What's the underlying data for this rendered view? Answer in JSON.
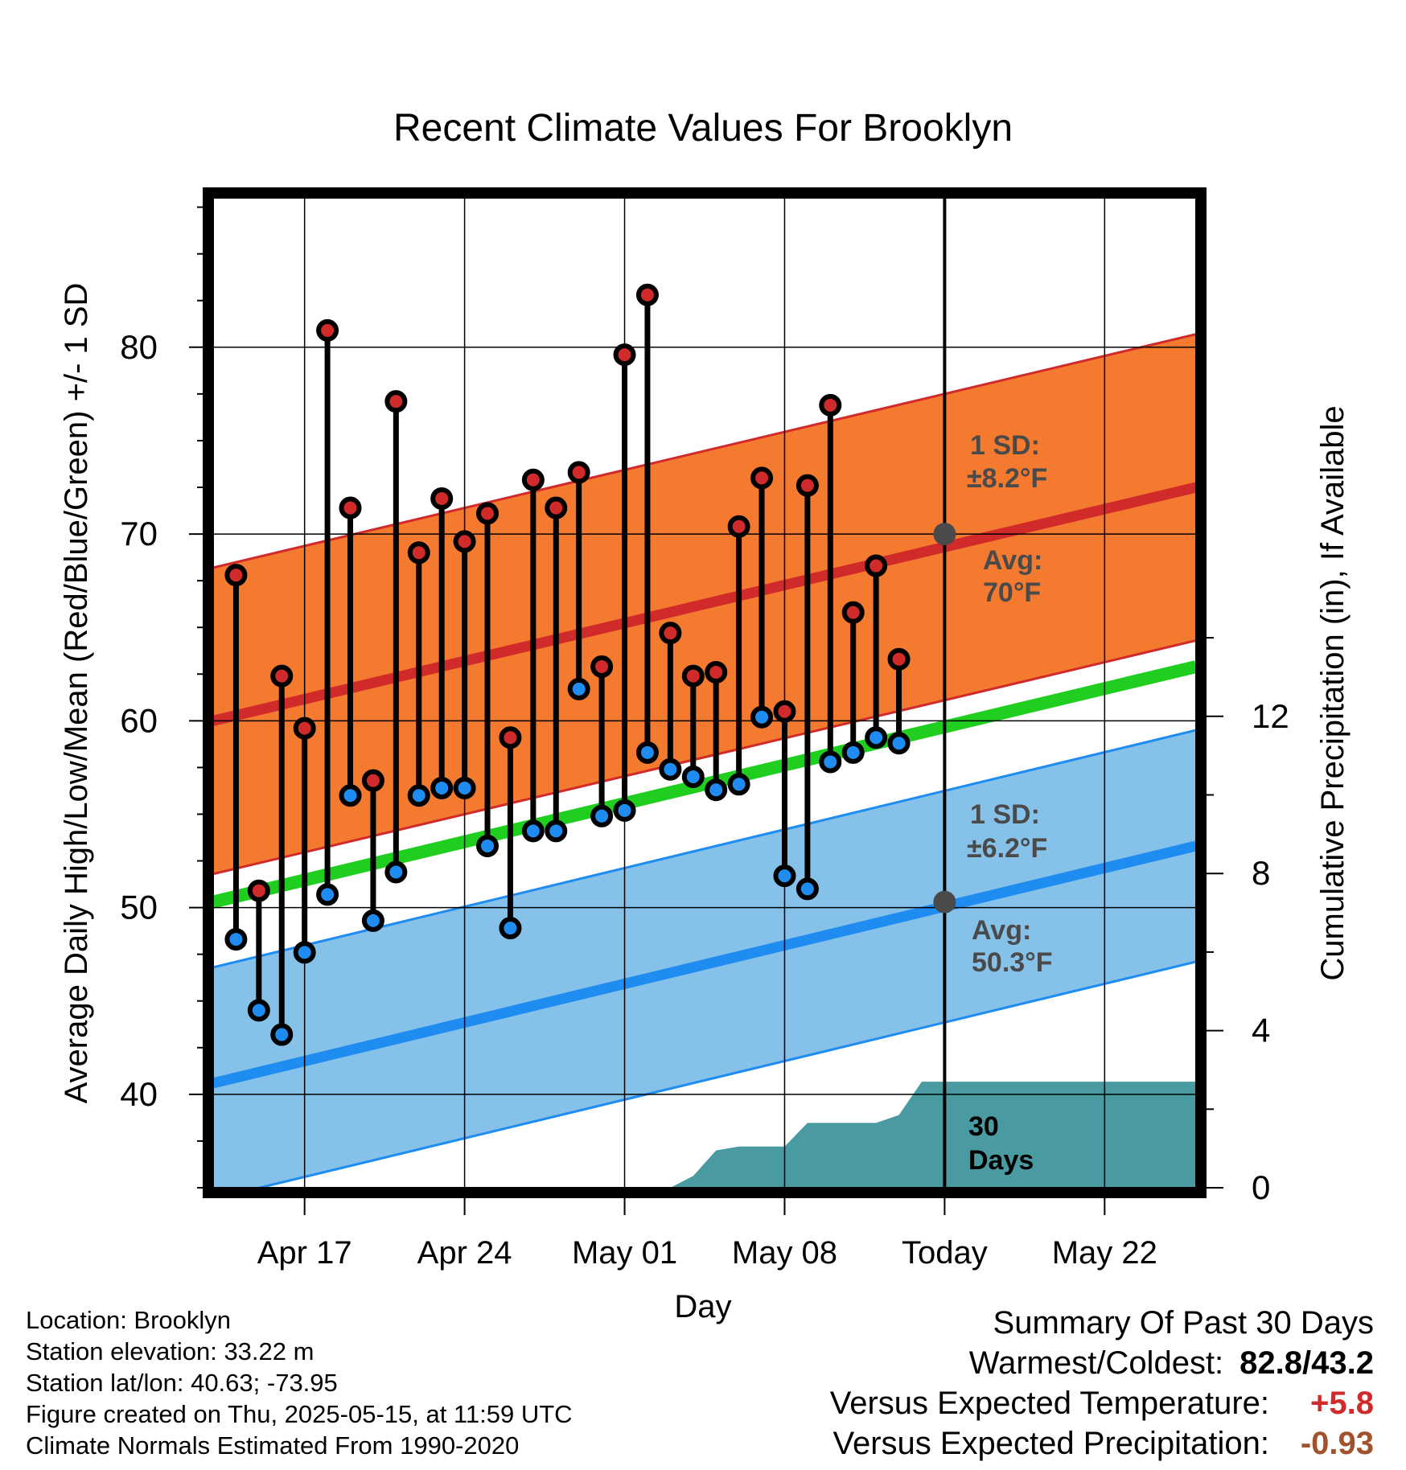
{
  "chart_data": {
    "type": "line",
    "title": "Recent Climate Values For Brooklyn",
    "xlabel": "Day",
    "ylabel_left": "Average Daily High/Low/Mean (Red/Blue/Green) +/- 1 SD",
    "ylabel_right": "Cumulative Precipitation (in), If Available",
    "x_range": [
      "2025-04-13",
      "2025-05-26"
    ],
    "ylim_left": [
      35,
      88
    ],
    "ylim_right": [
      0,
      25.2
    ],
    "yticks_left": [
      40,
      50,
      60,
      70,
      80
    ],
    "yticks_right": [
      0,
      4,
      8,
      12
    ],
    "x_ticks": [
      {
        "date": "2025-04-17",
        "label": "Apr 17"
      },
      {
        "date": "2025-04-24",
        "label": "Apr 24"
      },
      {
        "date": "2025-05-01",
        "label": "May 01"
      },
      {
        "date": "2025-05-08",
        "label": "May 08"
      },
      {
        "date": "2025-05-15",
        "label": "Today"
      },
      {
        "date": "2025-05-22",
        "label": "May 22"
      }
    ],
    "grid": true,
    "daily": {
      "dates": [
        "2025-04-14",
        "2025-04-15",
        "2025-04-16",
        "2025-04-17",
        "2025-04-18",
        "2025-04-19",
        "2025-04-20",
        "2025-04-21",
        "2025-04-22",
        "2025-04-23",
        "2025-04-24",
        "2025-04-25",
        "2025-04-26",
        "2025-04-27",
        "2025-04-28",
        "2025-04-29",
        "2025-04-30",
        "2025-05-01",
        "2025-05-02",
        "2025-05-03",
        "2025-05-04",
        "2025-05-05",
        "2025-05-06",
        "2025-05-07",
        "2025-05-08",
        "2025-05-09",
        "2025-05-10",
        "2025-05-11",
        "2025-05-12",
        "2025-05-13",
        "2025-05-14"
      ],
      "high": [
        67.8,
        50.9,
        62.4,
        59.6,
        80.9,
        71.4,
        56.8,
        77.1,
        69.0,
        71.9,
        69.6,
        71.1,
        59.1,
        72.9,
        71.4,
        73.3,
        62.9,
        79.6,
        82.8,
        64.7,
        62.4,
        62.6,
        70.4,
        73.0,
        60.5,
        72.6,
        76.9,
        65.8,
        68.3,
        63.3,
        null
      ],
      "low": [
        48.3,
        44.5,
        43.2,
        47.6,
        50.7,
        56.0,
        49.3,
        51.9,
        56.0,
        56.4,
        56.4,
        53.3,
        48.9,
        54.1,
        54.1,
        61.7,
        54.9,
        55.2,
        58.3,
        57.4,
        57.0,
        56.3,
        56.6,
        60.2,
        51.7,
        51.0,
        57.8,
        58.3,
        59.1,
        58.8,
        null
      ]
    },
    "normals": {
      "dates": [
        "2025-04-13",
        "2025-05-26"
      ],
      "avg_high": [
        60.0,
        72.5
      ],
      "high_sd": 8.2,
      "avg_low": [
        40.6,
        53.3
      ],
      "low_sd": 6.2,
      "avg_mean": [
        50.3,
        62.9
      ]
    },
    "precip": {
      "dates": [
        "2025-04-13",
        "2025-04-24",
        "2025-05-03",
        "2025-05-04",
        "2025-05-05",
        "2025-05-06",
        "2025-05-07",
        "2025-05-08",
        "2025-05-09",
        "2025-05-10",
        "2025-05-11",
        "2025-05-12",
        "2025-05-13",
        "2025-05-14",
        "2025-05-15",
        "2025-05-26"
      ],
      "values": [
        0,
        0,
        0,
        0.3,
        0.95,
        1.05,
        1.05,
        1.05,
        1.65,
        1.65,
        1.65,
        1.65,
        1.85,
        2.7,
        2.7,
        2.7
      ]
    },
    "today": {
      "date": "2025-05-15",
      "avg_high_value": 70,
      "avg_low_value": 50.3
    },
    "annotations": {
      "high_sd_line1": "1 SD:",
      "high_sd_line2": "±8.2°F",
      "high_avg_line1": "Avg:",
      "high_avg_line2": "70°F",
      "low_sd_line1": "1 SD:",
      "low_sd_line2": "±6.2°F",
      "low_avg_line1": "Avg:",
      "low_avg_line2": "50.3°F",
      "days_line1": "30",
      "days_line2": "Days"
    },
    "colors": {
      "high_band": "#f47a30",
      "high_line": "#d12a2a",
      "low_band": "#85c1e9",
      "low_line": "#1e8cf0",
      "mean_line": "#1fce1f",
      "precip_fill": "#4a9aa2",
      "high_dot": "#d12a2a",
      "low_dot": "#1e8cf0",
      "annotation_text": "#4a4a4a"
    }
  },
  "footer": {
    "location": "Location: Brooklyn",
    "elevation": "Station elevation: 33.22 m",
    "latlon": "Station lat/lon: 40.63; -73.95",
    "created": "Figure created on Thu, 2025-05-15, at 11:59 UTC",
    "normals": "Climate Normals Estimated From 1990-2020"
  },
  "summary": {
    "title": "Summary Of Past 30 Days",
    "warmest_label": "Warmest/Coldest:",
    "warmest_value": "82.8/43.2",
    "temp_label": "Versus Expected Temperature:",
    "temp_value": "+5.8",
    "temp_color": "#d12a2a",
    "precip_label": "Versus Expected Precipitation:",
    "precip_value": "-0.93",
    "precip_color": "#a0522d"
  }
}
